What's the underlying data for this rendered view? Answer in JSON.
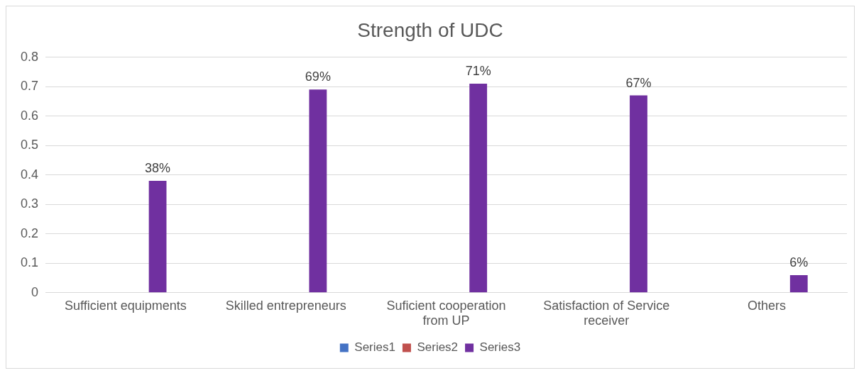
{
  "chart_data": {
    "type": "bar",
    "title": "Strength of UDC",
    "categories": [
      "Sufficient equipments",
      "Skilled entrepreneurs",
      "Suficient cooperation from UP",
      "Satisfaction of Service receiver",
      "Others"
    ],
    "series": [
      {
        "name": "Series1",
        "color": "#4472c4",
        "values": [
          null,
          null,
          null,
          null,
          null
        ]
      },
      {
        "name": "Series2",
        "color": "#c0504d",
        "values": [
          null,
          null,
          null,
          null,
          null
        ]
      },
      {
        "name": "Series3",
        "color": "#7030a0",
        "values": [
          0.38,
          0.69,
          0.71,
          0.67,
          0.06
        ],
        "value_labels": [
          "38%",
          "69%",
          "71%",
          "67%",
          "6%"
        ]
      }
    ],
    "ylim": [
      0,
      0.8
    ],
    "yticks": [
      0,
      0.1,
      0.2,
      0.3,
      0.4,
      0.5,
      0.6,
      0.7,
      0.8
    ],
    "grid": "y",
    "legend": "bottom"
  }
}
